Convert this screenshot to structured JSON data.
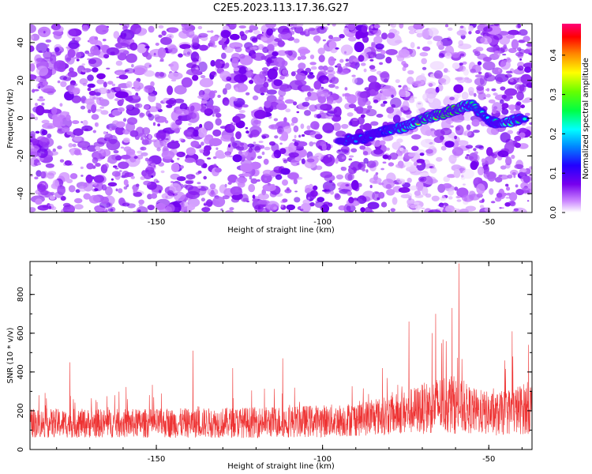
{
  "title": "C2E5.2023.113.17.36.G27",
  "chart_data": [
    {
      "type": "heatmap",
      "xlabel": "Height of straight line (km)",
      "ylabel": "Frequency (Hz)",
      "xlim": [
        -188,
        -37
      ],
      "ylim": [
        -50,
        50
      ],
      "x_ticks": [
        -150,
        -100,
        -50
      ],
      "y_ticks": [
        -40,
        -20,
        0,
        20,
        40
      ],
      "colorbar": {
        "label": "Normalized spectral amplitude",
        "range": [
          0,
          0.48
        ],
        "ticks": [
          0.0,
          0.1,
          0.2,
          0.3,
          0.4
        ],
        "colormap": "rainbow"
      },
      "signal_track": [
        {
          "x": -95,
          "y": -12,
          "amp": 0.15
        },
        {
          "x": -88,
          "y": -11,
          "amp": 0.18
        },
        {
          "x": -84,
          "y": -8,
          "amp": 0.16
        },
        {
          "x": -80,
          "y": -6,
          "amp": 0.22
        },
        {
          "x": -76,
          "y": -5,
          "amp": 0.28
        },
        {
          "x": -73,
          "y": -3,
          "amp": 0.34
        },
        {
          "x": -70,
          "y": -1,
          "amp": 0.42
        },
        {
          "x": -67,
          "y": 1,
          "amp": 0.38
        },
        {
          "x": -64,
          "y": 2,
          "amp": 0.44
        },
        {
          "x": -61,
          "y": 4,
          "amp": 0.46
        },
        {
          "x": -58,
          "y": 6,
          "amp": 0.4
        },
        {
          "x": -55,
          "y": 7,
          "amp": 0.25
        },
        {
          "x": -49,
          "y": -2,
          "amp": 0.2
        },
        {
          "x": -46,
          "y": -3,
          "amp": 0.35
        },
        {
          "x": -42,
          "y": -1,
          "amp": 0.3
        },
        {
          "x": -39,
          "y": 0,
          "amp": 0.22
        }
      ]
    },
    {
      "type": "line",
      "xlabel": "Height of straight line (km)",
      "ylabel": "SNR (10 * v/v)",
      "xlim": [
        -188,
        -37
      ],
      "ylim": [
        0,
        970
      ],
      "x_ticks": [
        -150,
        -100,
        -50
      ],
      "y_ticks": [
        0,
        200,
        400,
        600,
        800
      ],
      "color": "#ee3333",
      "baseline_profile": [
        {
          "x": -188,
          "base": 135,
          "spread": 75
        },
        {
          "x": -150,
          "base": 135,
          "spread": 75
        },
        {
          "x": -120,
          "base": 140,
          "spread": 80
        },
        {
          "x": -95,
          "base": 150,
          "spread": 85
        },
        {
          "x": -80,
          "base": 175,
          "spread": 100
        },
        {
          "x": -70,
          "base": 210,
          "spread": 130
        },
        {
          "x": -62,
          "base": 240,
          "spread": 160
        },
        {
          "x": -55,
          "base": 200,
          "spread": 120
        },
        {
          "x": -48,
          "base": 180,
          "spread": 110
        },
        {
          "x": -37,
          "base": 220,
          "spread": 140
        }
      ],
      "peaks": [
        {
          "x": -176,
          "y": 450
        },
        {
          "x": -139,
          "y": 510
        },
        {
          "x": -127,
          "y": 420
        },
        {
          "x": -112,
          "y": 470
        },
        {
          "x": -82,
          "y": 420
        },
        {
          "x": -74,
          "y": 660
        },
        {
          "x": -66,
          "y": 700
        },
        {
          "x": -61,
          "y": 730
        },
        {
          "x": -59,
          "y": 960
        },
        {
          "x": -43,
          "y": 610
        },
        {
          "x": -38,
          "y": 540
        }
      ]
    }
  ]
}
